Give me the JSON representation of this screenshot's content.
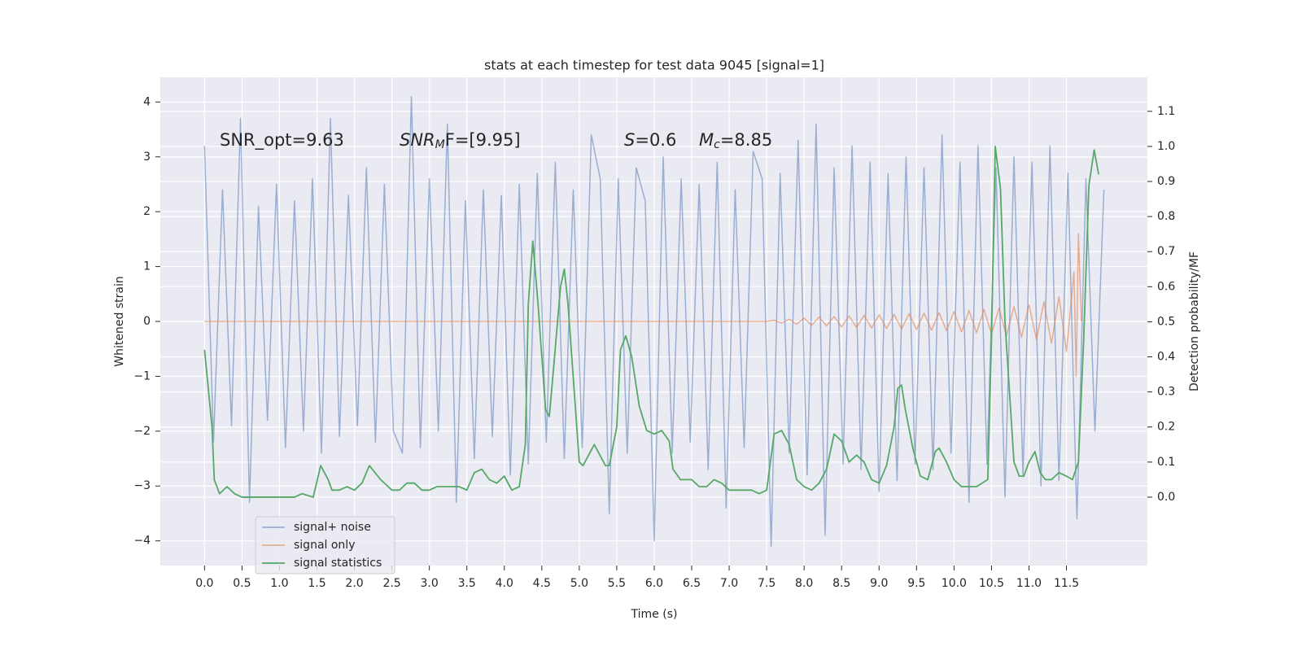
{
  "chart_data": {
    "type": "line",
    "title": "stats at each timestep for test data 9045 [signal=1]",
    "xlabel": "Time (s)",
    "ylabel": "Whitened strain",
    "y2label": "Detection probability/MF",
    "annotations": [
      {
        "text": "SNR_opt=9.63"
      },
      {
        "main": "SNR",
        "sub": "M",
        "tail": "F=[9.95]"
      },
      {
        "main": "S",
        "tail": "=0.6"
      },
      {
        "main": "M",
        "sub": "c",
        "tail": "=8.85"
      }
    ],
    "xlim": [
      -0.59,
      12.58
    ],
    "ylim": [
      -4.45,
      4.45
    ],
    "y2lim": [
      -0.195,
      1.197
    ],
    "xticks": [
      {
        "value": 0,
        "label": "0.0"
      },
      {
        "value": 0.5,
        "label": "0.5"
      },
      {
        "value": 1,
        "label": "1.0"
      },
      {
        "value": 1.5,
        "label": "1.5"
      },
      {
        "value": 2,
        "label": "2.0"
      },
      {
        "value": 2.5,
        "label": "2.5"
      },
      {
        "value": 3,
        "label": "3.0"
      },
      {
        "value": 3.5,
        "label": "3.5"
      },
      {
        "value": 4,
        "label": "4.0"
      },
      {
        "value": 4.5,
        "label": "4.5"
      },
      {
        "value": 5,
        "label": "5.0"
      },
      {
        "value": 5.5,
        "label": "5.5"
      },
      {
        "value": 6,
        "label": "6.0"
      },
      {
        "value": 6.5,
        "label": "6.5"
      },
      {
        "value": 7,
        "label": "7.0"
      },
      {
        "value": 7.5,
        "label": "7.5"
      },
      {
        "value": 8,
        "label": "8.0"
      },
      {
        "value": 8.5,
        "label": "8.5"
      },
      {
        "value": 9,
        "label": "9.0"
      },
      {
        "value": 9.5,
        "label": "9.5"
      },
      {
        "value": 10,
        "label": "10.0"
      },
      {
        "value": 10.5,
        "label": "10.5"
      },
      {
        "value": 11,
        "label": "11.0"
      },
      {
        "value": 11.5,
        "label": "11.5"
      }
    ],
    "yticks": [
      {
        "value": -4,
        "label": "−4"
      },
      {
        "value": -3,
        "label": "−3"
      },
      {
        "value": -2,
        "label": "−2"
      },
      {
        "value": -1,
        "label": "−1"
      },
      0,
      1,
      2,
      3,
      4
    ],
    "y2ticks": [
      {
        "value": 0,
        "label": "0.0"
      },
      {
        "value": 0.1,
        "label": "0.1"
      },
      {
        "value": 0.2,
        "label": "0.2"
      },
      {
        "value": 0.3,
        "label": "0.3"
      },
      {
        "value": 0.4,
        "label": "0.4"
      },
      {
        "value": 0.5,
        "label": "0.5"
      },
      {
        "value": 0.6,
        "label": "0.6"
      },
      {
        "value": 0.7,
        "label": "0.7"
      },
      {
        "value": 0.8,
        "label": "0.8"
      },
      {
        "value": 0.9,
        "label": "0.9"
      },
      {
        "value": 1,
        "label": "1.0"
      },
      {
        "value": 1.1,
        "label": "1.1"
      }
    ],
    "grid": true,
    "legend": "lower left",
    "series": [
      {
        "name": "signal+ noise",
        "color": "#4c72b0",
        "alpha": 0.5,
        "x": [
          0,
          0.12,
          0.24,
          0.36,
          0.48,
          0.6,
          0.72,
          0.84,
          0.96,
          1.08,
          1.2,
          1.32,
          1.44,
          1.56,
          1.68,
          1.8,
          1.92,
          2.04,
          2.16,
          2.28,
          2.4,
          2.52,
          2.64,
          2.76,
          2.88,
          3.0,
          3.12,
          3.24,
          3.36,
          3.48,
          3.6,
          3.72,
          3.84,
          3.96,
          4.08,
          4.2,
          4.32,
          4.44,
          4.56,
          4.68,
          4.8,
          4.92,
          5.04,
          5.16,
          5.28,
          5.4,
          5.52,
          5.64,
          5.76,
          5.88,
          6.0,
          6.12,
          6.24,
          6.36,
          6.48,
          6.6,
          6.72,
          6.84,
          6.96,
          7.08,
          7.2,
          7.32,
          7.44,
          7.56,
          7.68,
          7.8,
          7.92,
          8.04,
          8.16,
          8.28,
          8.4,
          8.52,
          8.64,
          8.76,
          8.88,
          9.0,
          9.12,
          9.24,
          9.36,
          9.48,
          9.6,
          9.72,
          9.84,
          9.96,
          10.08,
          10.2,
          10.32,
          10.44,
          10.56,
          10.68,
          10.8,
          10.92,
          11.04,
          11.16,
          11.28,
          11.4,
          11.52,
          11.64,
          11.76,
          11.88,
          12.0
        ],
        "values": [
          3.2,
          -2.2,
          2.4,
          -1.9,
          3.7,
          -3.3,
          2.1,
          -1.8,
          2.5,
          -2.3,
          2.2,
          -2.0,
          2.6,
          -2.4,
          3.7,
          -2.1,
          2.3,
          -1.9,
          2.8,
          -2.2,
          2.5,
          -2.0,
          -2.4,
          4.1,
          -2.3,
          2.6,
          -2.0,
          3.6,
          -3.3,
          2.2,
          -2.5,
          2.4,
          -2.1,
          2.3,
          -2.8,
          2.5,
          -2.6,
          2.7,
          -2.2,
          2.9,
          -2.5,
          2.4,
          -2.3,
          3.4,
          2.6,
          -3.5,
          2.6,
          -2.4,
          2.8,
          2.2,
          -4.0,
          3.0,
          -2.4,
          2.6,
          -2.2,
          2.5,
          -2.7,
          2.9,
          -3.4,
          2.4,
          -2.3,
          3.1,
          2.6,
          -4.1,
          2.7,
          -2.4,
          3.3,
          -2.8,
          3.6,
          -3.9,
          2.8,
          -2.6,
          3.2,
          -2.7,
          2.9,
          -3.1,
          2.7,
          -2.9,
          3.0,
          -2.6,
          2.8,
          -2.7,
          3.4,
          -2.4,
          2.9,
          -3.3,
          3.2,
          -2.6,
          2.8,
          -3.2,
          3.0,
          -2.8,
          2.9,
          -3.0,
          3.2,
          -2.9,
          2.7,
          -3.6,
          2.6,
          -2.0,
          2.4
        ]
      },
      {
        "name": "signal only",
        "color": "#dd8452",
        "alpha": 0.6,
        "x": [
          0,
          7.5,
          7.6,
          7.7,
          7.8,
          7.9,
          8.0,
          8.1,
          8.2,
          8.3,
          8.4,
          8.5,
          8.6,
          8.7,
          8.8,
          8.9,
          9.0,
          9.1,
          9.2,
          9.3,
          9.4,
          9.5,
          9.6,
          9.7,
          9.8,
          9.9,
          10.0,
          10.1,
          10.2,
          10.3,
          10.4,
          10.5,
          10.6,
          10.7,
          10.8,
          10.9,
          11.0,
          11.1,
          11.2,
          11.3,
          11.4,
          11.5,
          11.6,
          11.63,
          11.66,
          11.7
        ],
        "values": [
          0,
          0,
          0.02,
          -0.03,
          0.04,
          -0.05,
          0.06,
          -0.07,
          0.08,
          -0.08,
          0.09,
          -0.1,
          0.1,
          -0.11,
          0.11,
          -0.12,
          0.12,
          -0.13,
          0.13,
          -0.14,
          0.14,
          -0.15,
          0.15,
          -0.16,
          0.16,
          -0.17,
          0.18,
          -0.19,
          0.2,
          -0.21,
          0.22,
          -0.23,
          0.24,
          -0.26,
          0.27,
          -0.29,
          0.3,
          -0.33,
          0.36,
          -0.4,
          0.45,
          -0.55,
          0.9,
          -1.0,
          1.6,
          0
        ]
      },
      {
        "name": "signal statistics",
        "color": "#55a868",
        "alpha": 1,
        "axis": "y2",
        "x": [
          0,
          0.1,
          0.13,
          0.2,
          0.3,
          0.4,
          0.5,
          0.6,
          0.8,
          1.0,
          1.2,
          1.3,
          1.45,
          1.55,
          1.65,
          1.7,
          1.8,
          1.9,
          2.0,
          2.1,
          2.2,
          2.35,
          2.5,
          2.6,
          2.7,
          2.8,
          2.9,
          3.0,
          3.1,
          3.3,
          3.4,
          3.5,
          3.6,
          3.7,
          3.8,
          3.9,
          4.0,
          4.1,
          4.2,
          4.28,
          4.32,
          4.38,
          4.45,
          4.55,
          4.6,
          4.65,
          4.75,
          4.8,
          4.85,
          4.95,
          5.0,
          5.05,
          5.15,
          5.2,
          5.25,
          5.35,
          5.4,
          5.5,
          5.55,
          5.62,
          5.7,
          5.8,
          5.9,
          6.0,
          6.1,
          6.2,
          6.25,
          6.35,
          6.5,
          6.6,
          6.7,
          6.8,
          6.9,
          7.0,
          7.2,
          7.3,
          7.4,
          7.5,
          7.6,
          7.7,
          7.8,
          7.9,
          8.0,
          8.1,
          8.2,
          8.3,
          8.4,
          8.5,
          8.6,
          8.7,
          8.8,
          8.9,
          9.0,
          9.1,
          9.2,
          9.25,
          9.3,
          9.35,
          9.45,
          9.55,
          9.65,
          9.75,
          9.8,
          9.9,
          10.0,
          10.1,
          10.2,
          10.3,
          10.45,
          10.5,
          10.55,
          10.62,
          10.68,
          10.74,
          10.8,
          10.87,
          10.93,
          11.0,
          11.08,
          11.15,
          11.22,
          11.3,
          11.4,
          11.5,
          11.58,
          11.66,
          11.73,
          11.8,
          11.87,
          11.93
        ],
        "values": [
          0.42,
          0.2,
          0.05,
          0.01,
          0.03,
          0.01,
          0.0,
          0.0,
          0.0,
          0.0,
          0.0,
          0.01,
          0.0,
          0.09,
          0.05,
          0.02,
          0.02,
          0.03,
          0.02,
          0.04,
          0.09,
          0.05,
          0.02,
          0.02,
          0.04,
          0.04,
          0.02,
          0.02,
          0.03,
          0.03,
          0.03,
          0.02,
          0.07,
          0.08,
          0.05,
          0.04,
          0.06,
          0.02,
          0.03,
          0.15,
          0.55,
          0.73,
          0.55,
          0.25,
          0.23,
          0.35,
          0.6,
          0.65,
          0.55,
          0.25,
          0.1,
          0.09,
          0.13,
          0.15,
          0.13,
          0.09,
          0.09,
          0.2,
          0.42,
          0.46,
          0.4,
          0.26,
          0.19,
          0.18,
          0.19,
          0.16,
          0.08,
          0.05,
          0.05,
          0.03,
          0.03,
          0.05,
          0.04,
          0.02,
          0.02,
          0.02,
          0.01,
          0.02,
          0.18,
          0.19,
          0.15,
          0.05,
          0.03,
          0.02,
          0.04,
          0.08,
          0.18,
          0.16,
          0.1,
          0.12,
          0.1,
          0.05,
          0.04,
          0.09,
          0.2,
          0.31,
          0.32,
          0.25,
          0.14,
          0.06,
          0.05,
          0.13,
          0.14,
          0.1,
          0.05,
          0.03,
          0.03,
          0.03,
          0.05,
          0.45,
          1.0,
          0.88,
          0.5,
          0.3,
          0.1,
          0.06,
          0.06,
          0.1,
          0.13,
          0.07,
          0.05,
          0.05,
          0.07,
          0.06,
          0.05,
          0.1,
          0.45,
          0.89,
          0.99,
          0.92
        ]
      }
    ]
  }
}
